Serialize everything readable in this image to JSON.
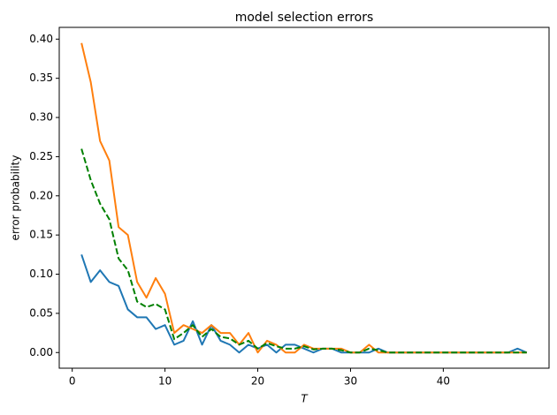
{
  "chart_data": {
    "type": "line",
    "title": "model selection errors",
    "x_label": "T",
    "y_label": "error probability",
    "x": [
      1,
      2,
      3,
      4,
      5,
      6,
      7,
      8,
      9,
      10,
      11,
      12,
      13,
      14,
      15,
      16,
      17,
      18,
      19,
      20,
      21,
      22,
      23,
      24,
      25,
      26,
      27,
      28,
      29,
      30,
      31,
      32,
      33,
      34,
      35,
      36,
      37,
      38,
      39,
      40,
      41,
      42,
      43,
      44,
      45,
      46,
      47,
      48,
      49
    ],
    "series": [
      {
        "color": "#1f77b4",
        "style": "solid",
        "values": [
          0.125,
          0.09,
          0.105,
          0.09,
          0.085,
          0.055,
          0.045,
          0.045,
          0.03,
          0.035,
          0.01,
          0.015,
          0.04,
          0.01,
          0.035,
          0.015,
          0.01,
          0.0,
          0.01,
          0.005,
          0.01,
          0.0,
          0.01,
          0.01,
          0.005,
          0.0,
          0.005,
          0.005,
          0.0,
          0.0,
          0.0,
          0.0,
          0.005,
          0,
          0,
          0,
          0,
          0,
          0,
          0,
          0,
          0,
          0,
          0,
          0,
          0,
          0,
          0.005,
          0
        ]
      },
      {
        "color": "#ff7f0e",
        "style": "solid",
        "values": [
          0.395,
          0.345,
          0.27,
          0.245,
          0.16,
          0.15,
          0.09,
          0.07,
          0.095,
          0.075,
          0.025,
          0.035,
          0.03,
          0.025,
          0.035,
          0.025,
          0.025,
          0.01,
          0.025,
          0.0,
          0.015,
          0.01,
          0.0,
          0.0,
          0.01,
          0.005,
          0.005,
          0.005,
          0.005,
          0,
          0,
          0.01,
          0,
          0,
          0,
          0,
          0,
          0,
          0,
          0,
          0,
          0,
          0,
          0,
          0,
          0,
          0,
          0,
          0
        ]
      },
      {
        "color": "#008000",
        "style": "dashed",
        "values": [
          0.26,
          0.22,
          0.19,
          0.17,
          0.12,
          0.105,
          0.065,
          0.058,
          0.062,
          0.055,
          0.017,
          0.025,
          0.035,
          0.02,
          0.03,
          0.02,
          0.018,
          0.01,
          0.015,
          0.005,
          0.012,
          0.008,
          0.005,
          0.005,
          0.008,
          0.004,
          0.005,
          0.005,
          0.003,
          0,
          0,
          0.005,
          0.003,
          0,
          0,
          0,
          0,
          0,
          0,
          0,
          0,
          0,
          0,
          0,
          0,
          0,
          0,
          0,
          0
        ]
      }
    ],
    "xlim": [
      -1.4,
      51.4
    ],
    "ylim": [
      -0.02,
      0.415
    ],
    "xticks": [
      0,
      10,
      20,
      30,
      40
    ],
    "yticks": [
      {
        "value": 0,
        "label": "0.00"
      },
      {
        "value": 0.05,
        "label": "0.05"
      },
      {
        "value": 0.1,
        "label": "0.10"
      },
      {
        "value": 0.15,
        "label": "0.15"
      },
      {
        "value": 0.2,
        "label": "0.20"
      },
      {
        "value": 0.25,
        "label": "0.25"
      },
      {
        "value": 0.3,
        "label": "0.30"
      },
      {
        "value": 0.35,
        "label": "0.35"
      },
      {
        "value": 0.4,
        "label": "0.40"
      }
    ]
  }
}
